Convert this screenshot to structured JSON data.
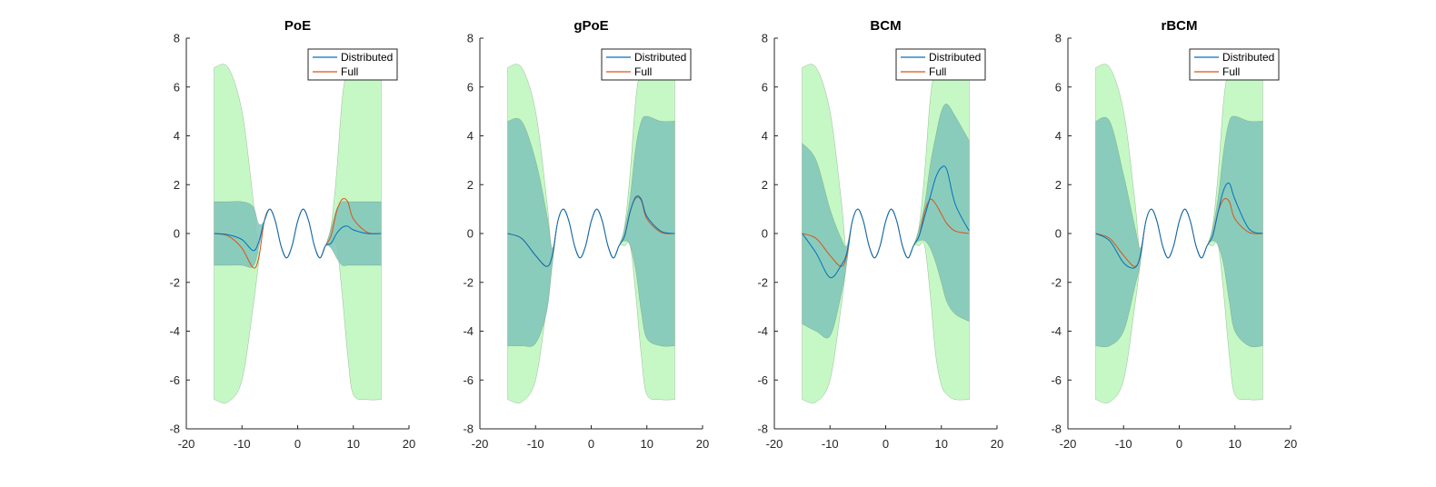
{
  "chart_data": [
    {
      "type": "area",
      "title": "PoE",
      "xlabel": "",
      "ylabel": "",
      "xlim": [
        -20,
        20
      ],
      "ylim": [
        -8,
        8
      ],
      "xticks": [
        -20,
        -10,
        0,
        10,
        20
      ],
      "yticks": [
        -8,
        -6,
        -4,
        -2,
        0,
        2,
        4,
        6,
        8
      ],
      "grid": false,
      "legend_position": "top-right",
      "legend": [
        "Distributed",
        "Full"
      ],
      "full_band_color": "#c6f8c6",
      "dist_band_color": "#7fc4b8",
      "x": [
        -15,
        -12.5,
        -10,
        -8,
        -7,
        -6,
        -5,
        -4,
        -3,
        -2,
        -1,
        0,
        1,
        2,
        3,
        4,
        5,
        6,
        7,
        8,
        9,
        10,
        12.5,
        15
      ],
      "series": [
        {
          "name": "Distributed",
          "color": "#0072bd",
          "values": [
            0,
            -0.05,
            -0.25,
            -0.7,
            -0.35,
            0.5,
            1,
            0.5,
            -0.5,
            -1,
            -0.5,
            0.5,
            1,
            0.5,
            -0.5,
            -1,
            -0.5,
            -0.4,
            0,
            0.25,
            0.3,
            0.15,
            0,
            0
          ],
          "lower": [
            -1.3,
            -1.3,
            -1.3,
            -1.35,
            -0.6,
            0.5,
            1,
            0.5,
            -0.5,
            -1,
            -0.5,
            0.5,
            1,
            0.5,
            -0.5,
            -1,
            -0.5,
            -0.6,
            -1.0,
            -1.3,
            -1.3,
            -1.3,
            -1.3,
            -1.3
          ],
          "upper": [
            1.3,
            1.3,
            1.3,
            1.1,
            0.4,
            0.5,
            1,
            0.5,
            -0.5,
            -1,
            -0.5,
            0.5,
            1,
            0.5,
            -0.5,
            -1,
            -0.5,
            0.2,
            1.0,
            1.3,
            1.3,
            1.3,
            1.3,
            1.3
          ]
        },
        {
          "name": "Full",
          "color": "#d95319",
          "values": [
            0,
            -0.1,
            -0.6,
            -1.4,
            -1.0,
            0.5,
            1,
            0.5,
            -0.5,
            -1,
            -0.5,
            0.5,
            1,
            0.5,
            -0.5,
            -1,
            -0.5,
            -0.1,
            0.9,
            1.4,
            1.3,
            0.6,
            0.05,
            0
          ],
          "lower": [
            -6.8,
            -6.9,
            -6.0,
            -3.0,
            -1.2,
            0.5,
            1,
            0.5,
            -0.5,
            -1,
            -0.5,
            0.5,
            1,
            0.5,
            -0.5,
            -1,
            -0.5,
            -0.5,
            -0.5,
            -2.5,
            -5.0,
            -6.6,
            -6.8,
            -6.8
          ],
          "upper": [
            6.8,
            6.8,
            5.0,
            1.4,
            -0.8,
            0.5,
            1,
            0.5,
            -0.5,
            -1,
            -0.5,
            0.5,
            1,
            0.5,
            -0.5,
            -1,
            -0.5,
            0.3,
            2.5,
            5.5,
            6.8,
            6.8,
            6.8,
            6.8
          ]
        }
      ]
    },
    {
      "type": "area",
      "title": "gPoE",
      "xlabel": "",
      "ylabel": "",
      "xlim": [
        -20,
        20
      ],
      "ylim": [
        -8,
        8
      ],
      "xticks": [
        -20,
        -10,
        0,
        10,
        20
      ],
      "yticks": [
        -8,
        -6,
        -4,
        -2,
        0,
        2,
        4,
        6,
        8
      ],
      "grid": false,
      "legend_position": "top-right",
      "legend": [
        "Distributed",
        "Full"
      ],
      "full_band_color": "#c6f8c6",
      "dist_band_color": "#7fc4b8",
      "x": [
        -15,
        -12.5,
        -10,
        -8,
        -7,
        -6,
        -5,
        -4,
        -3,
        -2,
        -1,
        0,
        1,
        2,
        3,
        4,
        5,
        6,
        7,
        8,
        9,
        10,
        12.5,
        15
      ],
      "series": [
        {
          "name": "Distributed",
          "color": "#0072bd",
          "values": [
            0,
            -0.2,
            -0.9,
            -1.35,
            -0.9,
            0.5,
            1,
            0.5,
            -0.5,
            -1,
            -0.5,
            0.5,
            1,
            0.5,
            -0.5,
            -1,
            -0.5,
            -0.1,
            0.9,
            1.5,
            1.4,
            0.7,
            0.1,
            0
          ],
          "lower": [
            -4.6,
            -4.6,
            -4.5,
            -3.2,
            -1.3,
            0.5,
            1,
            0.5,
            -0.5,
            -1,
            -0.5,
            0.5,
            1,
            0.5,
            -0.5,
            -1,
            -0.5,
            -0.3,
            -0.5,
            -1.5,
            -3.2,
            -4.3,
            -4.6,
            -4.6
          ],
          "upper": [
            4.6,
            4.6,
            3.0,
            0.8,
            -0.6,
            0.5,
            1,
            0.5,
            -0.5,
            -1,
            -0.5,
            0.5,
            1,
            0.5,
            -0.5,
            -1,
            -0.5,
            0.2,
            1.5,
            3.5,
            4.6,
            4.8,
            4.6,
            4.6
          ]
        },
        {
          "name": "Full",
          "color": "#d95319",
          "values": [
            0,
            -0.2,
            -0.9,
            -1.35,
            -0.9,
            0.5,
            1,
            0.5,
            -0.5,
            -1,
            -0.5,
            0.5,
            1,
            0.5,
            -0.5,
            -1,
            -0.5,
            -0.1,
            0.9,
            1.45,
            1.35,
            0.6,
            0.05,
            0
          ],
          "lower": [
            -6.8,
            -6.9,
            -6.0,
            -3.0,
            -1.2,
            0.5,
            1,
            0.5,
            -0.5,
            -1,
            -0.5,
            0.5,
            1,
            0.5,
            -0.5,
            -1,
            -0.5,
            -0.5,
            -0.5,
            -2.5,
            -5.0,
            -6.6,
            -6.8,
            -6.8
          ],
          "upper": [
            6.8,
            6.8,
            5.0,
            1.4,
            -0.8,
            0.5,
            1,
            0.5,
            -0.5,
            -1,
            -0.5,
            0.5,
            1,
            0.5,
            -0.5,
            -1,
            -0.5,
            0.3,
            2.5,
            5.5,
            6.8,
            6.8,
            6.8,
            6.8
          ]
        }
      ]
    },
    {
      "type": "area",
      "title": "BCM",
      "xlabel": "",
      "ylabel": "",
      "xlim": [
        -20,
        20
      ],
      "ylim": [
        -8,
        8
      ],
      "xticks": [
        -20,
        -10,
        0,
        10,
        20
      ],
      "yticks": [
        -8,
        -6,
        -4,
        -2,
        0,
        2,
        4,
        6,
        8
      ],
      "grid": false,
      "legend_position": "top-right",
      "legend": [
        "Distributed",
        "Full"
      ],
      "full_band_color": "#c6f8c6",
      "dist_band_color": "#7fc4b8",
      "x": [
        -15,
        -12.5,
        -10,
        -8,
        -7,
        -6,
        -5,
        -4,
        -3,
        -2,
        -1,
        0,
        1,
        2,
        3,
        4,
        5,
        6,
        7,
        8,
        9,
        10,
        11,
        12.5,
        15
      ],
      "series": [
        {
          "name": "Distributed",
          "color": "#0072bd",
          "values": [
            0,
            -0.8,
            -1.8,
            -1.3,
            -0.8,
            0.5,
            1,
            0.5,
            -0.5,
            -1,
            -0.5,
            0.5,
            1,
            0.5,
            -0.5,
            -1,
            -0.5,
            -0.1,
            0.7,
            1.5,
            2.3,
            2.7,
            2.6,
            1.2,
            0.1
          ],
          "lower": [
            -3.7,
            -4.0,
            -4.2,
            -2.5,
            -1.2,
            0.5,
            1,
            0.5,
            -0.5,
            -1,
            -0.5,
            0.5,
            1,
            0.5,
            -0.5,
            -1,
            -0.5,
            -0.3,
            -0.3,
            -0.6,
            -1.2,
            -2.0,
            -2.8,
            -3.3,
            -3.6
          ],
          "upper": [
            3.7,
            3.0,
            1.0,
            -0.2,
            -0.5,
            0.5,
            1,
            0.5,
            -0.5,
            -1,
            -0.5,
            0.5,
            1,
            0.5,
            -0.5,
            -1,
            -0.5,
            0.2,
            1.2,
            2.8,
            4.0,
            5.0,
            5.3,
            4.8,
            3.8
          ]
        },
        {
          "name": "Full",
          "color": "#d95319",
          "values": [
            0,
            -0.2,
            -0.9,
            -1.35,
            -0.9,
            0.5,
            1,
            0.5,
            -0.5,
            -1,
            -0.5,
            0.5,
            1,
            0.5,
            -0.5,
            -1,
            -0.5,
            -0.1,
            0.9,
            1.4,
            1.2,
            0.8,
            0.4,
            0.1,
            0
          ],
          "lower": [
            -6.8,
            -6.9,
            -6.0,
            -3.0,
            -1.2,
            0.5,
            1,
            0.5,
            -0.5,
            -1,
            -0.5,
            0.5,
            1,
            0.5,
            -0.5,
            -1,
            -0.5,
            -0.5,
            -0.5,
            -2.5,
            -5.0,
            -6.2,
            -6.6,
            -6.8,
            -6.8
          ],
          "upper": [
            6.8,
            6.8,
            5.0,
            1.4,
            -0.8,
            0.5,
            1,
            0.5,
            -0.5,
            -1,
            -0.5,
            0.5,
            1,
            0.5,
            -0.5,
            -1,
            -0.5,
            0.3,
            2.5,
            5.5,
            6.8,
            6.8,
            6.8,
            6.8,
            6.8
          ]
        }
      ]
    },
    {
      "type": "area",
      "title": "rBCM",
      "xlabel": "",
      "ylabel": "",
      "xlim": [
        -20,
        20
      ],
      "ylim": [
        -8,
        8
      ],
      "xticks": [
        -20,
        -10,
        0,
        10,
        20
      ],
      "yticks": [
        -8,
        -6,
        -4,
        -2,
        0,
        2,
        4,
        6,
        8
      ],
      "grid": false,
      "legend_position": "top-right",
      "legend": [
        "Distributed",
        "Full"
      ],
      "full_band_color": "#c6f8c6",
      "dist_band_color": "#7fc4b8",
      "x": [
        -15,
        -12.5,
        -10,
        -8,
        -7,
        -6,
        -5,
        -4,
        -3,
        -2,
        -1,
        0,
        1,
        2,
        3,
        4,
        5,
        6,
        7,
        8,
        9,
        10,
        12.5,
        15
      ],
      "series": [
        {
          "name": "Distributed",
          "color": "#0072bd",
          "values": [
            0,
            -0.3,
            -1.2,
            -1.4,
            -0.9,
            0.5,
            1,
            0.5,
            -0.5,
            -1,
            -0.5,
            0.5,
            1,
            0.5,
            -0.5,
            -1,
            -0.5,
            -0.1,
            0.9,
            1.8,
            2.05,
            1.4,
            0.2,
            0
          ],
          "lower": [
            -4.6,
            -4.6,
            -4.0,
            -2.2,
            -1.2,
            0.5,
            1,
            0.5,
            -0.5,
            -1,
            -0.5,
            0.5,
            1,
            0.5,
            -0.5,
            -1,
            -0.5,
            -0.3,
            -0.5,
            -1.3,
            -2.8,
            -4.0,
            -4.6,
            -4.6
          ],
          "upper": [
            4.6,
            4.6,
            2.4,
            0.3,
            -0.6,
            0.5,
            1,
            0.5,
            -0.5,
            -1,
            -0.5,
            0.5,
            1,
            0.5,
            -0.5,
            -1,
            -0.5,
            0.2,
            1.5,
            3.4,
            4.6,
            4.8,
            4.6,
            4.6
          ]
        },
        {
          "name": "Full",
          "color": "#d95319",
          "values": [
            0,
            -0.2,
            -0.9,
            -1.35,
            -0.9,
            0.5,
            1,
            0.5,
            -0.5,
            -1,
            -0.5,
            0.5,
            1,
            0.5,
            -0.5,
            -1,
            -0.5,
            -0.1,
            0.9,
            1.4,
            1.3,
            0.6,
            0.05,
            0
          ],
          "lower": [
            -6.8,
            -6.9,
            -6.0,
            -3.0,
            -1.2,
            0.5,
            1,
            0.5,
            -0.5,
            -1,
            -0.5,
            0.5,
            1,
            0.5,
            -0.5,
            -1,
            -0.5,
            -0.5,
            -0.5,
            -2.5,
            -5.0,
            -6.6,
            -6.8,
            -6.8
          ],
          "upper": [
            6.8,
            6.8,
            5.0,
            1.4,
            -0.8,
            0.5,
            1,
            0.5,
            -0.5,
            -1,
            -0.5,
            0.5,
            1,
            0.5,
            -0.5,
            -1,
            -0.5,
            0.3,
            2.5,
            5.5,
            6.8,
            6.8,
            6.8,
            6.8
          ]
        }
      ]
    }
  ]
}
